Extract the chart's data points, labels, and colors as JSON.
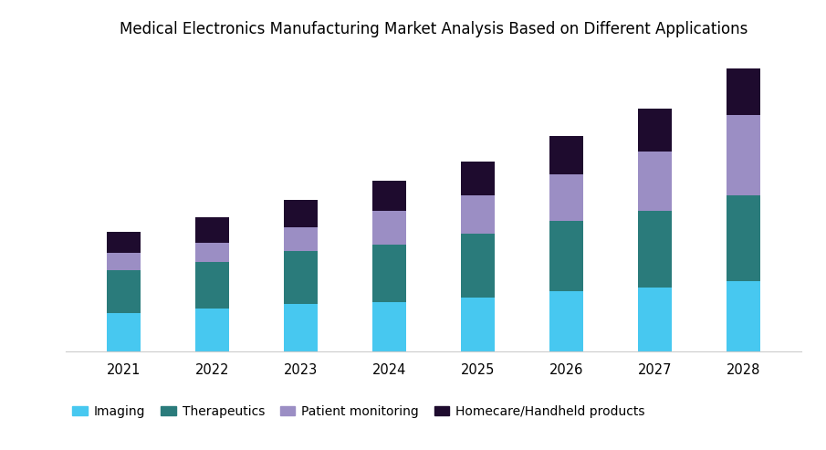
{
  "title": "Medical Electronics Manufacturing Market Analysis Based on Different Applications",
  "years": [
    2021,
    2022,
    2023,
    2024,
    2025,
    2026,
    2027,
    2028
  ],
  "imaging": [
    18,
    20,
    22,
    23,
    25,
    28,
    30,
    33
  ],
  "therapeutics": [
    20,
    22,
    25,
    27,
    30,
    33,
    36,
    40
  ],
  "patient_monitoring": [
    8,
    9,
    11,
    16,
    18,
    22,
    28,
    38
  ],
  "homecare": [
    10,
    12,
    13,
    14,
    16,
    18,
    20,
    22
  ],
  "colors": {
    "imaging": "#47C8F0",
    "therapeutics": "#2A7B7B",
    "patient_monitoring": "#9B8EC4",
    "homecare": "#1E0B2E"
  },
  "legend_labels": [
    "Imaging",
    "Therapeutics",
    "Patient monitoring",
    "Homecare/Handheld products"
  ],
  "bar_width": 0.38,
  "background_color": "#FFFFFF",
  "title_fontsize": 12,
  "tick_fontsize": 10.5,
  "legend_fontsize": 10
}
